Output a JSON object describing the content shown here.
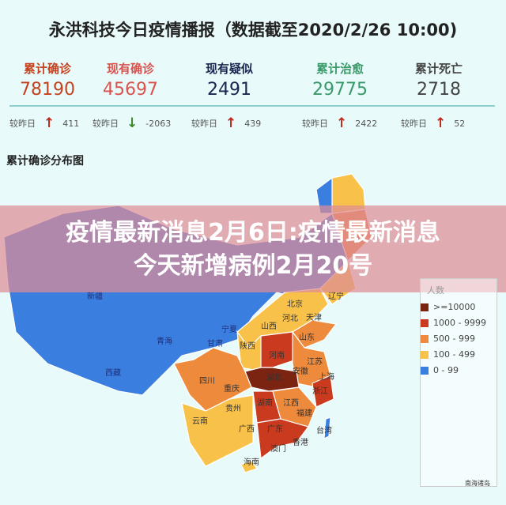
{
  "header": {
    "title": "永洪科技今日疫情播报（数据截至2020/2/26 10:00)"
  },
  "stats": [
    {
      "label": "累计确诊",
      "value": "78190",
      "delta_label": "较昨日",
      "direction": "up",
      "delta": "411",
      "color": "#c4421f"
    },
    {
      "label": "现有确诊",
      "value": "45697",
      "delta_label": "较昨日",
      "direction": "down",
      "delta": "-2063",
      "color": "#d9534f"
    },
    {
      "label": "现有疑似",
      "value": "2491",
      "delta_label": "较昨日",
      "direction": "up",
      "delta": "439",
      "color": "#1b2650"
    },
    {
      "label": "累计治愈",
      "value": "29775",
      "delta_label": "较昨日",
      "direction": "up",
      "delta": "2422",
      "color": "#3a9a6a"
    },
    {
      "label": "累计死亡",
      "value": "2718",
      "delta_label": "较昨日",
      "direction": "up",
      "delta": "52",
      "color": "#444444"
    }
  ],
  "map": {
    "title": "累计确诊分布图",
    "provinces": {
      "xinjiang": "新疆",
      "qinghai": "青海",
      "xizang": "西藏",
      "ningxia": "宁夏",
      "gansu": "甘肃",
      "shaanxi": "陕西",
      "shanxi": "山西",
      "beijing": "北京",
      "hebei": "河北",
      "tianjin": "天津",
      "liaoning": "辽宁",
      "shandong": "山东",
      "henan": "河南",
      "jiangsu": "江苏",
      "anhui": "安徽",
      "shanghai": "上海",
      "hubei": "湖北",
      "sichuan": "四川",
      "chongqing": "重庆",
      "zhejiang": "浙江",
      "hunan": "湖南",
      "jiangxi": "江西",
      "guizhou": "贵州",
      "fujian": "福建",
      "yunnan": "云南",
      "guangxi": "广西",
      "guangdong": "广东",
      "taiwan": "台湾",
      "xianggang": "香港",
      "aomen": "澳门",
      "hainan": "海南"
    },
    "inset_label": "南海诸岛"
  },
  "legend": {
    "title": "人数",
    "items": [
      {
        "label": ">=10000",
        "color": "#7b2412"
      },
      {
        "label": "1000 - 9999",
        "color": "#c93a1e"
      },
      {
        "label": "500 - 999",
        "color": "#ee8a3c"
      },
      {
        "label": "100 - 499",
        "color": "#f8c24a"
      },
      {
        "label": "0 - 99",
        "color": "#3a7fe0"
      }
    ]
  },
  "overlay": {
    "line1": "疫情最新消息2月6日:疫情最新消息",
    "line2": "今天新增病例2月20号"
  }
}
